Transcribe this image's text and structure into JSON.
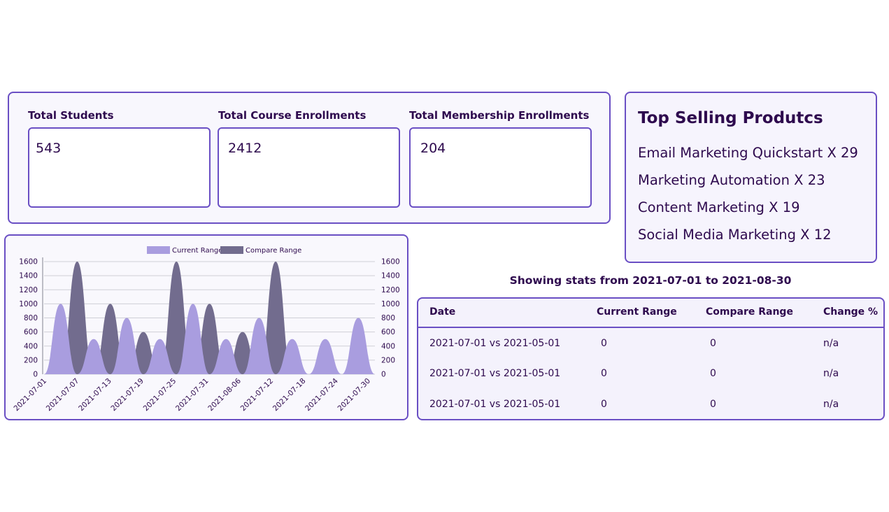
{
  "stats": [
    {
      "label": "Total Students",
      "value": "543"
    },
    {
      "label": "Total Course Enrollments",
      "value": "2412"
    },
    {
      "label": "Total Membership Enrollments",
      "value": "204"
    }
  ],
  "top_products": {
    "title": "Top Selling Produtcs",
    "items": [
      "Email Marketing Quickstart X 29",
      "Marketing Automation X 23",
      "Content Marketing X 19",
      "Social Media Marketing X 12"
    ]
  },
  "range_caption": "Showing stats from 2021-07-01 to 2021-08-30",
  "table": {
    "headers": [
      "Date",
      "Current Range",
      "Compare Range",
      "Change %"
    ],
    "rows": [
      [
        "2021-07-01 vs 2021-05-01",
        "0",
        "0",
        "n/a"
      ],
      [
        "2021-07-01 vs 2021-05-01",
        "0",
        "0",
        "n/a"
      ],
      [
        "2021-07-01 vs 2021-05-01",
        "0",
        "0",
        "n/a"
      ]
    ]
  },
  "colors": {
    "accent": "#6a4fc4",
    "current_range": "#a99ddf",
    "compare_range": "#726c8e",
    "text": "#2e0a4e"
  },
  "chart_data": {
    "type": "area",
    "x_tick_labels": [
      "2021-07-01",
      "2021-07-07",
      "2021-07-13",
      "2021-07-19",
      "2021-07-25",
      "2021-07-31",
      "2021-08-06",
      "2021-07-12",
      "2021-07-18",
      "2021-07-24",
      "2021-07-30"
    ],
    "ylim": [
      0,
      1600
    ],
    "y_ticks": [
      0,
      200,
      400,
      600,
      800,
      1000,
      1200,
      1400,
      1600
    ],
    "grid": true,
    "legend": "top-center",
    "series": [
      {
        "name": "Current Range",
        "points": [
          [
            0,
            0
          ],
          [
            1,
            1000
          ],
          [
            2,
            0
          ],
          [
            3,
            500
          ],
          [
            4,
            0
          ],
          [
            5,
            800
          ],
          [
            6,
            0
          ],
          [
            7,
            500
          ],
          [
            8,
            0
          ],
          [
            9,
            1000
          ],
          [
            10,
            0
          ],
          [
            11,
            500
          ],
          [
            12,
            0
          ],
          [
            13,
            800
          ],
          [
            14,
            0
          ],
          [
            15,
            500
          ],
          [
            16,
            0
          ],
          [
            17,
            500
          ],
          [
            18,
            0
          ],
          [
            19,
            800
          ],
          [
            20,
            0
          ]
        ]
      },
      {
        "name": "Compare Range",
        "points": [
          [
            1,
            0
          ],
          [
            2,
            1600
          ],
          [
            3,
            0
          ],
          [
            4,
            1000
          ],
          [
            5,
            0
          ],
          [
            6,
            600
          ],
          [
            7,
            0
          ],
          [
            8,
            1600
          ],
          [
            9,
            0
          ],
          [
            10,
            1000
          ],
          [
            11,
            0
          ],
          [
            12,
            600
          ],
          [
            13,
            0
          ],
          [
            14,
            1600
          ],
          [
            15,
            0
          ]
        ]
      }
    ]
  }
}
